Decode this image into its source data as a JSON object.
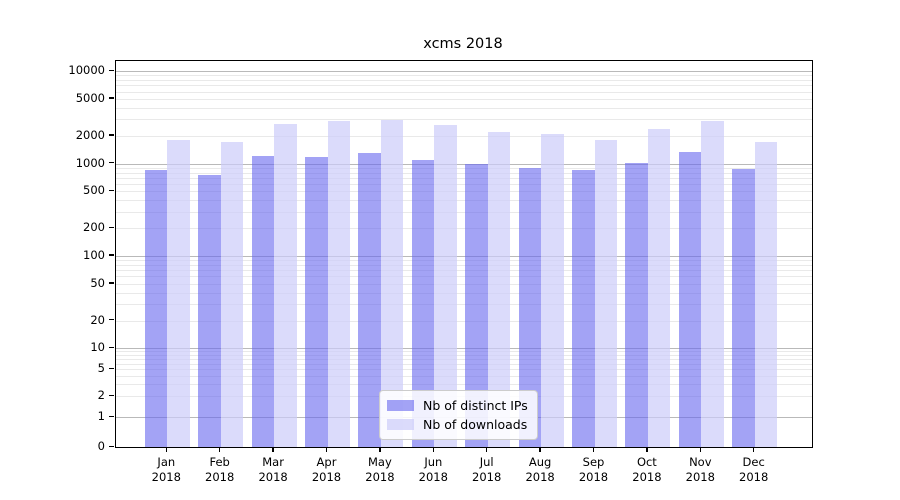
{
  "chart_data": {
    "type": "bar",
    "title": "xcms 2018",
    "categories": [
      "Jan",
      "Feb",
      "Mar",
      "Apr",
      "May",
      "Jun",
      "Jul",
      "Aug",
      "Sep",
      "Oct",
      "Nov",
      "Dec"
    ],
    "year_label": "2018",
    "series": [
      {
        "name": "Nb of distinct IPs",
        "color": "#6666ee",
        "alpha": 0.6,
        "values": [
          850,
          760,
          1210,
          1190,
          1310,
          1100,
          980,
          890,
          860,
          1020,
          1330,
          870
        ]
      },
      {
        "name": "Nb of downloads",
        "color": "#ccccfa",
        "alpha": 0.7,
        "values": [
          1800,
          1700,
          2680,
          2880,
          2940,
          2610,
          2210,
          2110,
          1790,
          2350,
          2910,
          1690
        ]
      }
    ],
    "y_axis": {
      "scale": "symlog",
      "ticks": [
        0,
        1,
        2,
        5,
        10,
        20,
        50,
        100,
        200,
        500,
        1000,
        2000,
        5000,
        10000
      ],
      "range": [
        0,
        13000
      ]
    },
    "grid": {
      "major_color": "#b9b9b9",
      "minor_color": "#e9e9e9"
    },
    "legend": {
      "position": "lower center"
    }
  }
}
